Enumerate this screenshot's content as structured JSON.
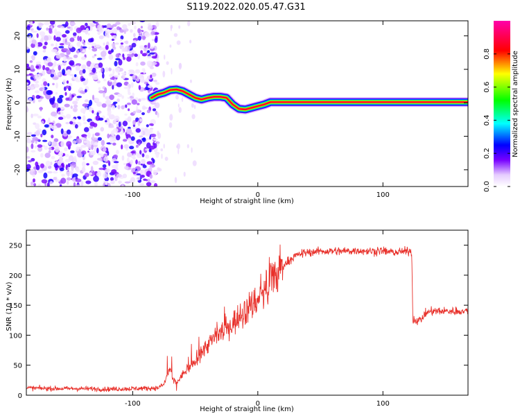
{
  "title": "S119.2022.020.05.47.G31",
  "colors": {
    "snr_line": "#e8302a",
    "frame": "#000000",
    "colormap": [
      "#ffffff",
      "#e6ccff",
      "#7700ff",
      "#0000ff",
      "#00ffff",
      "#00ff00",
      "#ffff00",
      "#ff0000",
      "#ff00aa"
    ]
  },
  "chart_data": [
    {
      "type": "heatmap",
      "title": "",
      "xlabel": "Height of straight line (km)",
      "ylabel": "Frequency (Hz)",
      "xlim": [
        -185,
        168
      ],
      "ylim": [
        -25,
        24.5
      ],
      "xticks": [
        -100,
        0,
        100
      ],
      "yticks": [
        -20,
        -10,
        0,
        10,
        20
      ],
      "colorbar": {
        "label": "Normalized spectral amplitude",
        "range": [
          0,
          1
        ],
        "ticks": [
          0.0,
          0.2,
          0.4,
          0.6,
          0.8
        ]
      },
      "noise_region_x": [
        -185,
        -80
      ],
      "ridge": {
        "x": [
          -85,
          -80,
          -75,
          -70,
          -65,
          -60,
          -55,
          -50,
          -45,
          -40,
          -35,
          -30,
          -25,
          -20,
          -15,
          -10,
          -5,
          0,
          5,
          10,
          168
        ],
        "freq": [
          1.5,
          2.5,
          3.0,
          3.8,
          4.0,
          3.5,
          2.5,
          1.5,
          1.0,
          1.5,
          1.8,
          1.8,
          1.5,
          -0.5,
          -1.8,
          -2.0,
          -1.5,
          -1.0,
          -0.5,
          0.2,
          0.2
        ],
        "amplitude": [
          0.45,
          0.55,
          0.6,
          0.7,
          0.75,
          0.7,
          0.7,
          0.75,
          0.8,
          0.8,
          0.85,
          0.85,
          0.85,
          0.8,
          0.8,
          0.8,
          0.82,
          0.85,
          0.88,
          0.95,
          0.95
        ]
      }
    },
    {
      "type": "line",
      "title": "",
      "xlabel": "Height of straight line (km)",
      "ylabel": "SNR (10 * v/v)",
      "xlim": [
        -185,
        168
      ],
      "ylim": [
        0,
        275
      ],
      "xticks": [
        -100,
        0,
        100
      ],
      "yticks": [
        0,
        50,
        100,
        150,
        200,
        250
      ],
      "series": [
        {
          "x": [
            -185,
            -160,
            -140,
            -120,
            -100,
            -80,
            -75,
            -72,
            -70,
            -68,
            -65,
            -60,
            -55,
            -50,
            -45,
            -40,
            -35,
            -30,
            -25,
            -20,
            -15,
            -10,
            -5,
            0,
            5,
            10,
            15,
            20,
            25,
            30,
            35,
            40,
            50,
            60,
            70,
            80,
            90,
            95,
            96,
            100,
            110,
            120,
            123,
            124,
            130,
            135,
            140,
            150,
            160,
            168
          ],
          "y": [
            12,
            11,
            11,
            10,
            11,
            12,
            18,
            35,
            45,
            25,
            20,
            35,
            45,
            55,
            70,
            85,
            95,
            105,
            110,
            120,
            130,
            140,
            150,
            160,
            175,
            185,
            200,
            215,
            225,
            232,
            236,
            238,
            240,
            240,
            240,
            241,
            240,
            240,
            242,
            240,
            238,
            240,
            240,
            125,
            125,
            138,
            140,
            140,
            140,
            140
          ]
        }
      ]
    }
  ]
}
